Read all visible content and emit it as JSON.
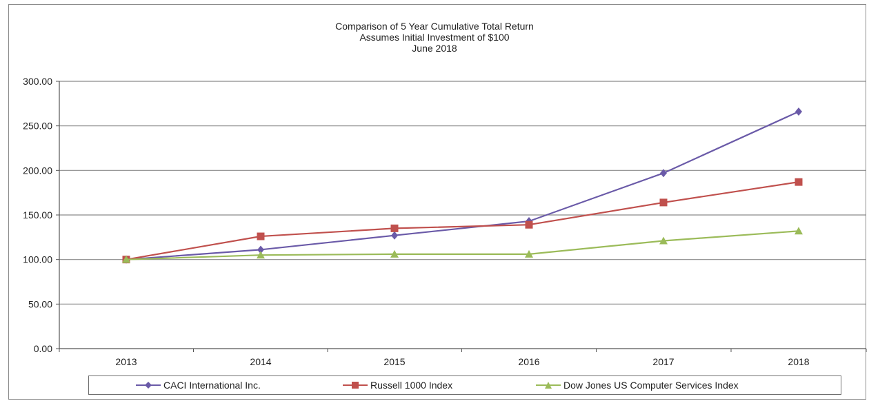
{
  "chart_data": {
    "type": "line",
    "title_lines": [
      "Comparison of 5 Year Cumulative  Total Return",
      "Assumes Initial Investment  of $100",
      "June 2018"
    ],
    "categories": [
      "2013",
      "2014",
      "2015",
      "2016",
      "2017",
      "2018"
    ],
    "y_ticks": [
      "0.00",
      "50.00",
      "100.00",
      "150.00",
      "200.00",
      "250.00",
      "300.00"
    ],
    "ylim": [
      0,
      300
    ],
    "grid": true,
    "legend_position": "bottom",
    "series": [
      {
        "name": "CACI International Inc.",
        "color": "#6a5aa8",
        "marker": "diamond",
        "values": [
          100,
          111,
          127,
          143,
          197,
          266
        ]
      },
      {
        "name": "Russell 1000 Index",
        "color": "#c0504d",
        "marker": "square",
        "values": [
          100,
          126,
          135,
          139,
          164,
          187
        ]
      },
      {
        "name": "Dow Jones US Computer Services Index",
        "color": "#9bbb59",
        "marker": "triangle",
        "values": [
          100,
          105,
          106,
          106,
          121,
          132
        ]
      }
    ]
  }
}
